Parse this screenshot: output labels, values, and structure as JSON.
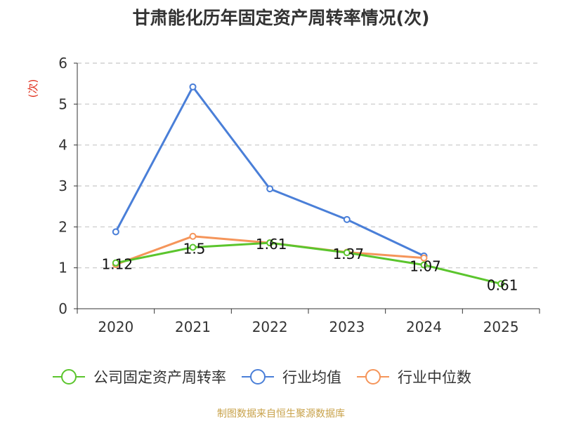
{
  "chart_data": {
    "type": "line",
    "title": "甘肃能化历年固定资产周转率情况(次)",
    "ylabel": "(次)",
    "xlabel": "",
    "categories": [
      "2020",
      "2021",
      "2022",
      "2023",
      "2024",
      "2025"
    ],
    "ylim": [
      0,
      6
    ],
    "yticks": [
      0,
      1,
      2,
      3,
      4,
      5,
      6
    ],
    "grid": true,
    "legend_position": "bottom",
    "series": [
      {
        "name": "公司固定资产周转率",
        "color": "#5bc52d",
        "values": [
          1.12,
          1.5,
          1.61,
          1.37,
          1.07,
          0.61
        ],
        "labels": [
          "1.12",
          "1.5",
          "1.61",
          "1.37",
          "1.07",
          "0.61"
        ]
      },
      {
        "name": "行业均值",
        "color": "#4a7fd8",
        "values": [
          1.88,
          5.42,
          2.93,
          2.18,
          1.29,
          null
        ]
      },
      {
        "name": "行业中位数",
        "color": "#f5955a",
        "values": [
          1.08,
          1.77,
          1.61,
          1.38,
          1.24,
          null
        ]
      }
    ]
  },
  "source_note": "制图数据来自恒生聚源数据库"
}
